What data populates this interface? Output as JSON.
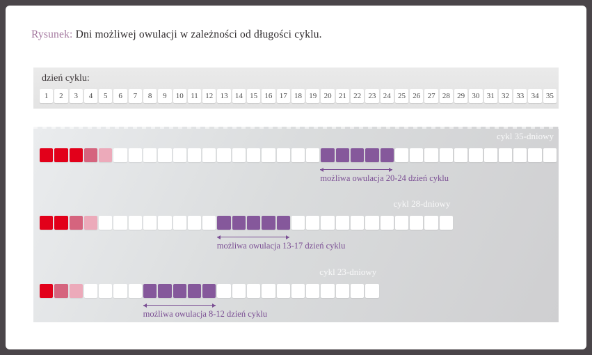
{
  "page": {
    "title_prefix": "Rysunek:",
    "title_text": " Dni możliwej owulacji w zależności od długości cyklu."
  },
  "day_scale": {
    "label": "dzień cyklu:",
    "days": [
      1,
      2,
      3,
      4,
      5,
      6,
      7,
      8,
      9,
      10,
      11,
      12,
      13,
      14,
      15,
      16,
      17,
      18,
      19,
      20,
      21,
      22,
      23,
      24,
      25,
      26,
      27,
      28,
      29,
      30,
      31,
      32,
      33,
      34,
      35
    ]
  },
  "cycles": [
    {
      "label": "cykl 35-dniowy",
      "length": 35,
      "menstruation_days": [
        "full",
        "full",
        "full",
        "mid",
        "light"
      ],
      "ovulation_start": 20,
      "ovulation_end": 24,
      "annotation": "możliwa owulacja 20-24 dzień cyklu"
    },
    {
      "label": "cykl 28-dniowy",
      "length": 28,
      "menstruation_days": [
        "full",
        "full",
        "mid",
        "light"
      ],
      "ovulation_start": 13,
      "ovulation_end": 17,
      "annotation": "możliwa owulacja 13-17 dzień cyklu"
    },
    {
      "label": "cykl 23-dniowy",
      "length": 23,
      "menstruation_days": [
        "full",
        "mid",
        "light"
      ],
      "ovulation_start": 8,
      "ovulation_end": 12,
      "annotation": "możliwa owulacja 8-12 dzień cyklu"
    }
  ],
  "colors": {
    "frame": "#4a4549",
    "accent": "#a4789f",
    "menstruation-full": "#e2001a",
    "menstruation-mid": "#d5647e",
    "menstruation-light": "#ecaaba",
    "ovulation": "#85589b",
    "annotation": "#7b4f94"
  }
}
